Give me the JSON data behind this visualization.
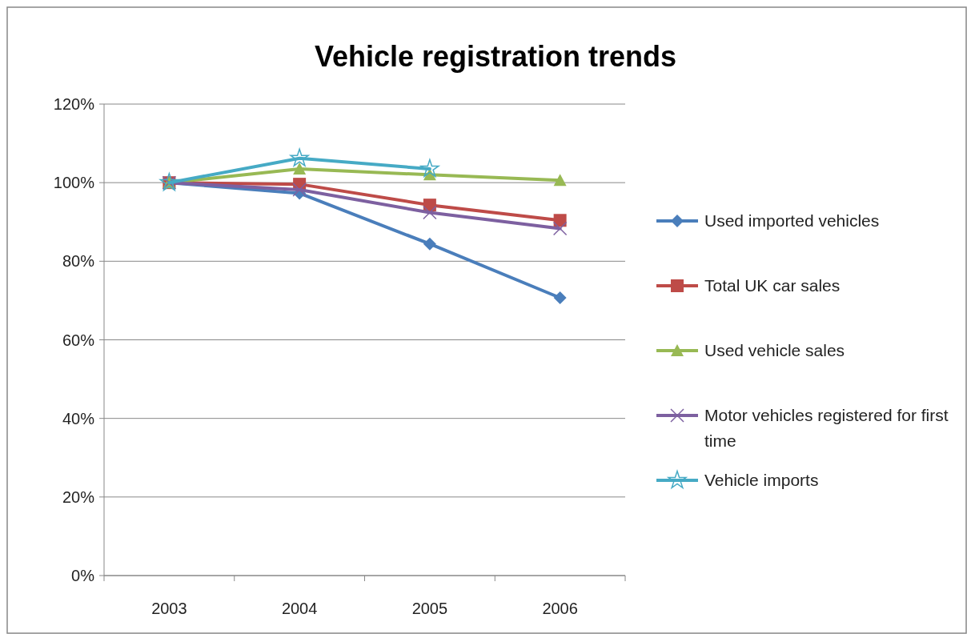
{
  "chart_data": {
    "type": "line",
    "title": "Vehicle registration trends",
    "categories": [
      "2003",
      "2004",
      "2005",
      "2006"
    ],
    "series": [
      {
        "name": "Used imported vehicles",
        "color": "#4a7ebb",
        "marker": "diamond",
        "values": [
          100,
          97.3,
          84.4,
          70.7
        ]
      },
      {
        "name": "Total UK car sales",
        "color": "#be4b48",
        "marker": "square",
        "values": [
          100,
          99.6,
          94.3,
          90.4
        ]
      },
      {
        "name": "Used vehicle sales",
        "color": "#98b954",
        "marker": "triangle",
        "values": [
          100,
          103.5,
          102.0,
          100.6
        ]
      },
      {
        "name": "Motor vehicles registered for first time",
        "color": "#7d60a0",
        "marker": "cross",
        "values": [
          100,
          98.2,
          92.4,
          88.3
        ]
      },
      {
        "name": "Vehicle imports",
        "color": "#46aac5",
        "marker": "star",
        "values": [
          100,
          106.2,
          103.5,
          null
        ]
      }
    ],
    "ylim": [
      0,
      120
    ],
    "yticks": [
      {
        "value": 0,
        "label": "0%"
      },
      {
        "value": 20,
        "label": "20%"
      },
      {
        "value": 40,
        "label": "40%"
      },
      {
        "value": 60,
        "label": "60%"
      },
      {
        "value": 80,
        "label": "80%"
      },
      {
        "value": 100,
        "label": "100%"
      },
      {
        "value": 120,
        "label": "120%"
      }
    ],
    "grid": "y",
    "legend": "right",
    "line_style": "solid"
  }
}
